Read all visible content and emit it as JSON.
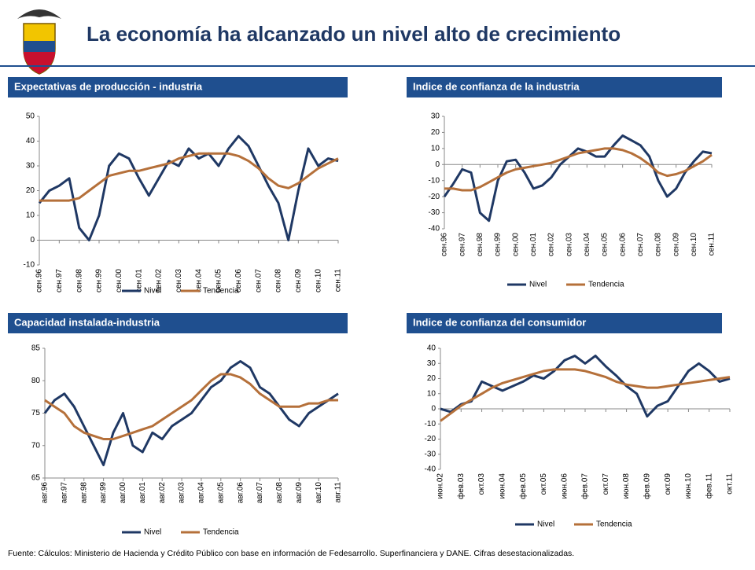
{
  "title": "La economía ha alcanzado un nivel alto de crecimiento",
  "source": "Fuente: Cálculos: Ministerio de Hacienda y Crédito Público con base en información de Fedesarrollo. Superfinanciera  y DANE. Cifras desestacionalizadas.",
  "chart_data": [
    {
      "type": "line",
      "title": "Expectativas de producción - industria",
      "categories": [
        "сен.96",
        null,
        "сен.97",
        null,
        "сен.98",
        null,
        "сен.99",
        null,
        "сен.00",
        null,
        "сен.01",
        null,
        "сен.02",
        null,
        "сен.03",
        null,
        "сен.04",
        null,
        "сен.05",
        null,
        "сен.06",
        null,
        "сен.07",
        null,
        "сен.08",
        null,
        "сен.09",
        null,
        "сен.10",
        null,
        "сен.11"
      ],
      "series": [
        {
          "name": "Nivel",
          "color": "#1f3864",
          "values": [
            15,
            20,
            22,
            25,
            5,
            0,
            10,
            30,
            35,
            33,
            25,
            18,
            25,
            32,
            30,
            37,
            33,
            35,
            30,
            37,
            42,
            38,
            30,
            22,
            15,
            0,
            20,
            37,
            30,
            33,
            32
          ]
        },
        {
          "name": "Tendencia",
          "color": "#b5703a",
          "values": [
            16,
            16,
            16,
            16,
            17,
            20,
            23,
            26,
            27,
            28,
            28,
            29,
            30,
            31,
            33,
            34,
            35,
            35,
            35,
            35,
            34,
            32,
            29,
            25,
            22,
            21,
            23,
            26,
            29,
            31,
            33
          ]
        }
      ],
      "ylim": [
        -10,
        50
      ],
      "yticks": [
        -10,
        0,
        10,
        20,
        30,
        40,
        50
      ]
    },
    {
      "type": "line",
      "title": "Indice de confianza de la industria",
      "categories": [
        "сен.96",
        null,
        "сен.97",
        null,
        "сен.98",
        null,
        "сен.99",
        null,
        "сен.00",
        null,
        "сен.01",
        null,
        "сен.02",
        null,
        "сен.03",
        null,
        "сен.04",
        null,
        "сен.05",
        null,
        "сен.06",
        null,
        "сен.07",
        null,
        "сен.08",
        null,
        "сен.09",
        null,
        "сен.10",
        null,
        "сен.11"
      ],
      "series": [
        {
          "name": "Nivel",
          "color": "#1f3864",
          "values": [
            -20,
            -12,
            -3,
            -5,
            -30,
            -35,
            -10,
            2,
            3,
            -5,
            -15,
            -13,
            -8,
            0,
            5,
            10,
            8,
            5,
            5,
            12,
            18,
            15,
            12,
            5,
            -10,
            -20,
            -15,
            -5,
            2,
            8,
            7
          ]
        },
        {
          "name": "Tendencia",
          "color": "#b5703a",
          "values": [
            -15,
            -15,
            -16,
            -16,
            -14,
            -11,
            -8,
            -5,
            -3,
            -2,
            -1,
            0,
            1,
            3,
            5,
            7,
            8,
            9,
            10,
            10,
            9,
            7,
            4,
            0,
            -5,
            -7,
            -6,
            -4,
            -1,
            2,
            6
          ]
        }
      ],
      "ylim": [
        -40,
        30
      ],
      "yticks": [
        -40,
        -30,
        -20,
        -10,
        0,
        10,
        20,
        30
      ]
    },
    {
      "type": "line",
      "title": "Capacidad instalada-industria",
      "categories": [
        "авг.96",
        null,
        "авг.97",
        null,
        "авг.98",
        null,
        "авг.99",
        null,
        "авг.00",
        null,
        "авг.01",
        null,
        "авг.02",
        null,
        "авг.03",
        null,
        "авг.04",
        null,
        "авг.05",
        null,
        "авг.06",
        null,
        "авг.07",
        null,
        "авг.08",
        null,
        "авг.09",
        null,
        "авг.10",
        null,
        "авг.11"
      ],
      "series": [
        {
          "name": "Nivel",
          "color": "#1f3864",
          "values": [
            75,
            77,
            78,
            76,
            73,
            70,
            67,
            72,
            75,
            70,
            69,
            72,
            71,
            73,
            74,
            75,
            77,
            79,
            80,
            82,
            83,
            82,
            79,
            78,
            76,
            74,
            73,
            75,
            76,
            77,
            78
          ]
        },
        {
          "name": "Tendencia",
          "color": "#b5703a",
          "values": [
            77,
            76,
            75,
            73,
            72,
            71.5,
            71,
            71,
            71.5,
            72,
            72.5,
            73,
            74,
            75,
            76,
            77,
            78.5,
            80,
            81,
            81,
            80.5,
            79.5,
            78,
            77,
            76,
            76,
            76,
            76.5,
            76.5,
            77,
            77
          ]
        }
      ],
      "ylim": [
        65,
        85
      ],
      "yticks": [
        65,
        70,
        75,
        80,
        85
      ]
    },
    {
      "type": "line",
      "title": "Indice de confianza del consumidor",
      "categories": [
        "июн.02",
        null,
        "фев.03",
        null,
        "окт.03",
        null,
        "июн.04",
        null,
        "фев.05",
        null,
        "окт.05",
        null,
        "июн.06",
        null,
        "фев.07",
        null,
        "окт.07",
        null,
        "июн.08",
        null,
        "фев.09",
        null,
        "окт.09",
        null,
        "июн.10",
        null,
        "фев.11",
        null,
        "окт.11"
      ],
      "series": [
        {
          "name": "Nivel",
          "color": "#1f3864",
          "values": [
            0,
            -2,
            3,
            5,
            18,
            15,
            12,
            15,
            18,
            22,
            20,
            25,
            32,
            35,
            30,
            35,
            28,
            22,
            15,
            10,
            -5,
            2,
            5,
            15,
            25,
            30,
            25,
            18,
            20
          ]
        },
        {
          "name": "Tendencia",
          "color": "#b5703a",
          "values": [
            -8,
            -3,
            2,
            6,
            10,
            14,
            17,
            19,
            21,
            23,
            25,
            26,
            26,
            26,
            25,
            23,
            21,
            18,
            16,
            15,
            14,
            14,
            15,
            16,
            17,
            18,
            19,
            20,
            21
          ]
        }
      ],
      "ylim": [
        -40,
        40
      ],
      "yticks": [
        -40,
        -30,
        -20,
        -10,
        0,
        10,
        20,
        30,
        40
      ]
    }
  ]
}
